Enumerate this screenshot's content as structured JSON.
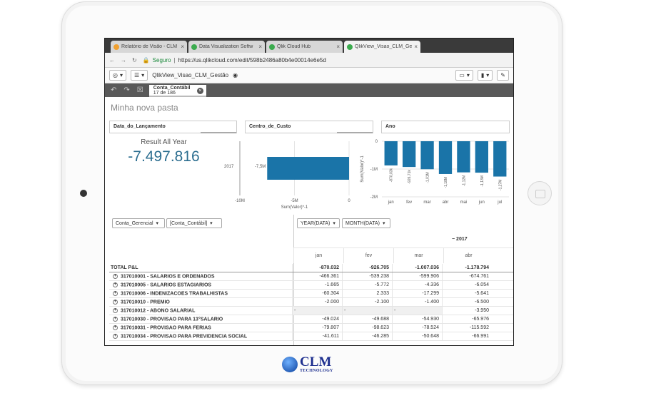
{
  "browser": {
    "tabs": [
      {
        "title": "Relatório de Visão - CLM",
        "icon_color": "#f0a030",
        "active": false
      },
      {
        "title": "Data Visualization Softw",
        "icon_color": "#3bab4e",
        "active": false
      },
      {
        "title": "Qlik Cloud Hub",
        "icon_color": "#3bab4e",
        "active": false
      },
      {
        "title": "QlikView_Visao_CLM_Ge",
        "icon_color": "#3bab4e",
        "active": true
      }
    ],
    "close_glyph": "×",
    "secure_label": "Seguro",
    "url": "https://us.qlikcloud.com/edit/598b2486a80b4e00014e6e5d"
  },
  "toolbar": {
    "app_title": "QlikView_Visao_CLM_Gestão"
  },
  "selection": {
    "field": "Conta_Contábil",
    "count": "17 de 186"
  },
  "sheet": {
    "title": "Minha nova pasta"
  },
  "filters": [
    {
      "label": "Data_do_Lançamento"
    },
    {
      "label": "Centro_de_Custo"
    },
    {
      "label": "Ano"
    }
  ],
  "kpi": {
    "label": "Result All Year",
    "value": "-7.497.816"
  },
  "chart_data": [
    {
      "type": "bar",
      "orientation": "horizontal",
      "categories": [
        "2017"
      ],
      "values": [
        -7497816
      ],
      "data_labels": [
        "-7,5M"
      ],
      "xlabel": "Sum(Valor)*-1",
      "xticks": [
        "-10M",
        "-5M",
        "0"
      ],
      "xlim": [
        -10000000,
        0
      ]
    },
    {
      "type": "bar",
      "categories": [
        "jan",
        "fev",
        "mar",
        "abr",
        "mai",
        "jun",
        "jul"
      ],
      "values": [
        -870032,
        -926705,
        -1007036,
        -1178794,
        -1120000,
        -1130000,
        -1270000
      ],
      "data_labels": [
        "-870,03k",
        "-926,71k",
        "-1,01M",
        "-1,18M",
        "-1,12M",
        "-1,13M",
        "-1,27M"
      ],
      "ylabel": "Sum(Valor)*-1",
      "yticks": [
        "0",
        "-1M",
        "-2M"
      ],
      "ylim": [
        -2000000,
        0
      ],
      "color": "#1a74a8"
    }
  ],
  "table": {
    "dimensions": [
      "Conta_Gerencial",
      "[Conta_Contábil]"
    ],
    "column_dims": [
      "YEAR(DATA)",
      "MONTH(DATA)"
    ],
    "year": "2017",
    "months": [
      "jan",
      "fev",
      "mar",
      "abr"
    ],
    "rows": [
      {
        "label": "TOTAL P&L",
        "total": true,
        "values": [
          "-870.032",
          "-926.705",
          "-1.007.036",
          "-1.178.794"
        ]
      },
      {
        "label": "317010001 - SALARIOS E ORDENADOS",
        "values": [
          "-466.361",
          "-539.238",
          "-599.906",
          "-674.761"
        ]
      },
      {
        "label": "317010005 - SALARIOS ESTAGIARIOS",
        "values": [
          "-1.665",
          "-5.772",
          "-4.336",
          "-6.054"
        ]
      },
      {
        "label": "317010006 - INDENIZACOES TRABALHISTAS",
        "values": [
          "-60.304",
          "2.333",
          "-17.299",
          "-5.641"
        ]
      },
      {
        "label": "317010010 - PREMIO",
        "values": [
          "-2.000",
          "-2.100",
          "-1.400",
          "-6.500"
        ]
      },
      {
        "label": "317010012 - ABONO SALARIAL",
        "values": [
          "-",
          "-",
          "-",
          "-3.950"
        ]
      },
      {
        "label": "317010030 - PROVISAO PARA 13°SALARIO",
        "values": [
          "-49.024",
          "-49.688",
          "-54.930",
          "-65.976"
        ]
      },
      {
        "label": "317010031 - PROVISAO PARA FERIAS",
        "values": [
          "-79.807",
          "-98.623",
          "-78.524",
          "-115.592"
        ]
      },
      {
        "label": "317010034 - PROVISAO PARA PREVIDENCIA SOCIAL",
        "values": [
          "-41.611",
          "-46.285",
          "-50.648",
          "-66.991"
        ]
      }
    ]
  },
  "footer": {
    "logo_text": "CLM",
    "logo_sub": "TECHNOLOGY"
  }
}
